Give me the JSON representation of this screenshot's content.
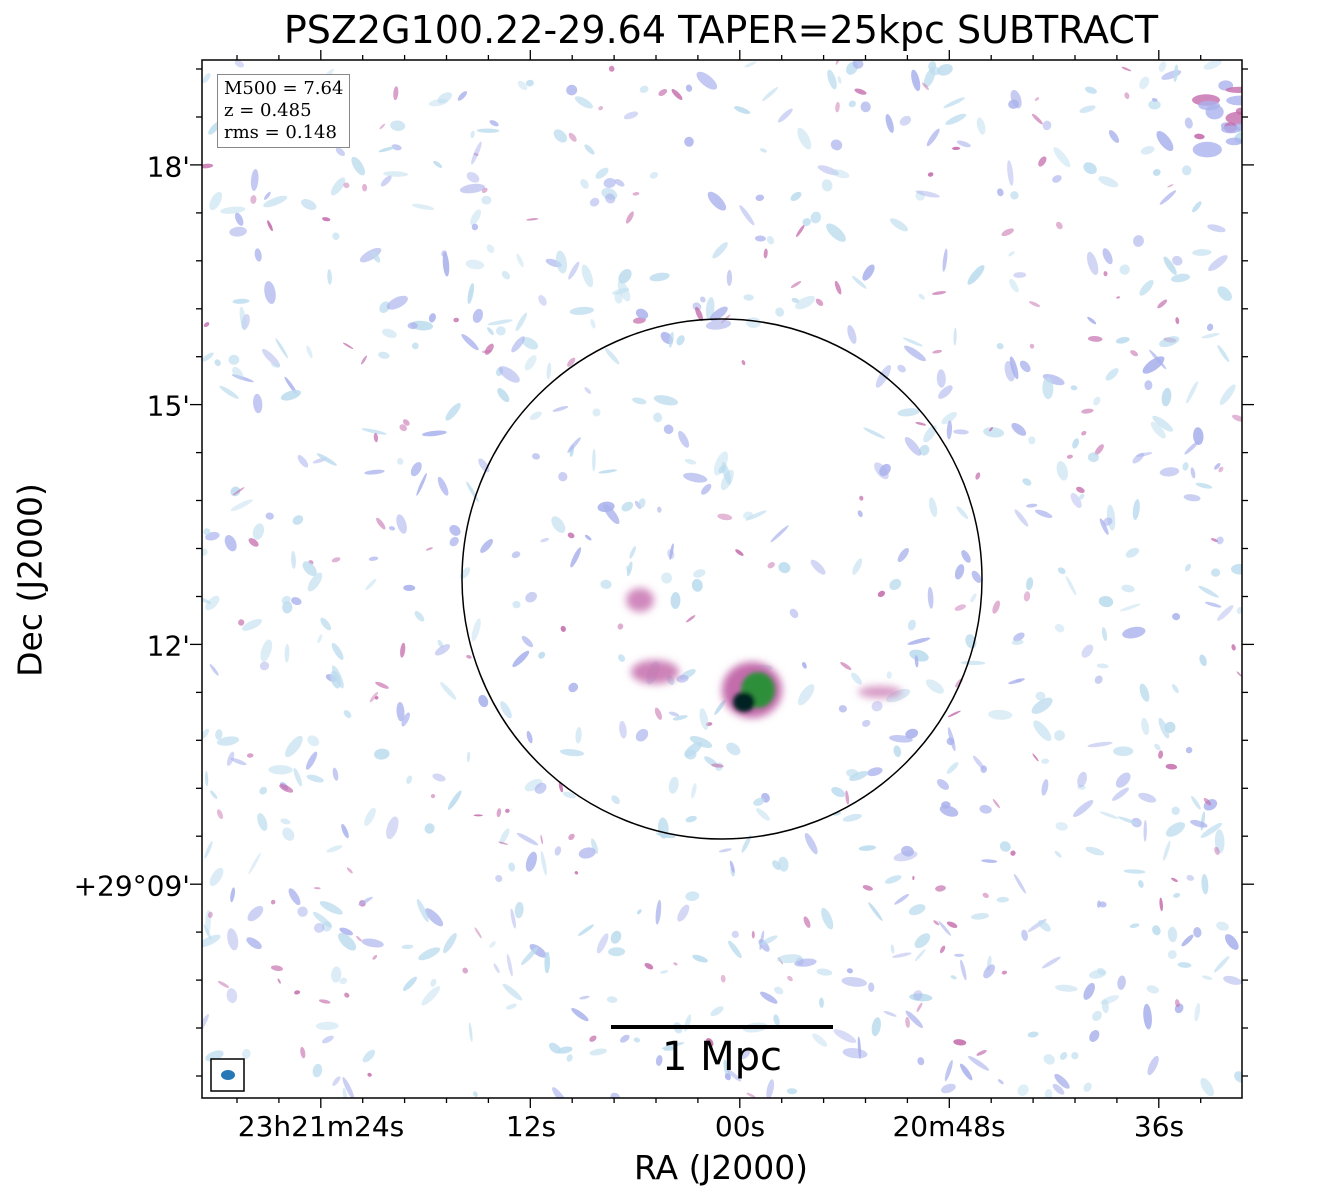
{
  "title": "PSZ2G100.22-29.64 TAPER=25kpc SUBTRACT",
  "axes": {
    "xlabel": "RA (J2000)",
    "ylabel": "Dec (J2000)",
    "xticks": [
      "23h21m24s",
      "12s",
      "00s",
      "20m48s",
      "36s"
    ],
    "yticks": [
      "18'",
      "15'",
      "12'",
      "+29°09'"
    ]
  },
  "info": {
    "m500": "M500 = 7.64",
    "z": "z = 0.485",
    "rms": "rms = 0.148"
  },
  "scalebar": {
    "label": "1 Mpc"
  },
  "colors": {
    "faint": "#bcdcee",
    "lavender": "#aab2ec",
    "magenta": "#c46cac",
    "green": "#2f8f3a",
    "core": "#062024",
    "beam": "#2677b6"
  }
}
